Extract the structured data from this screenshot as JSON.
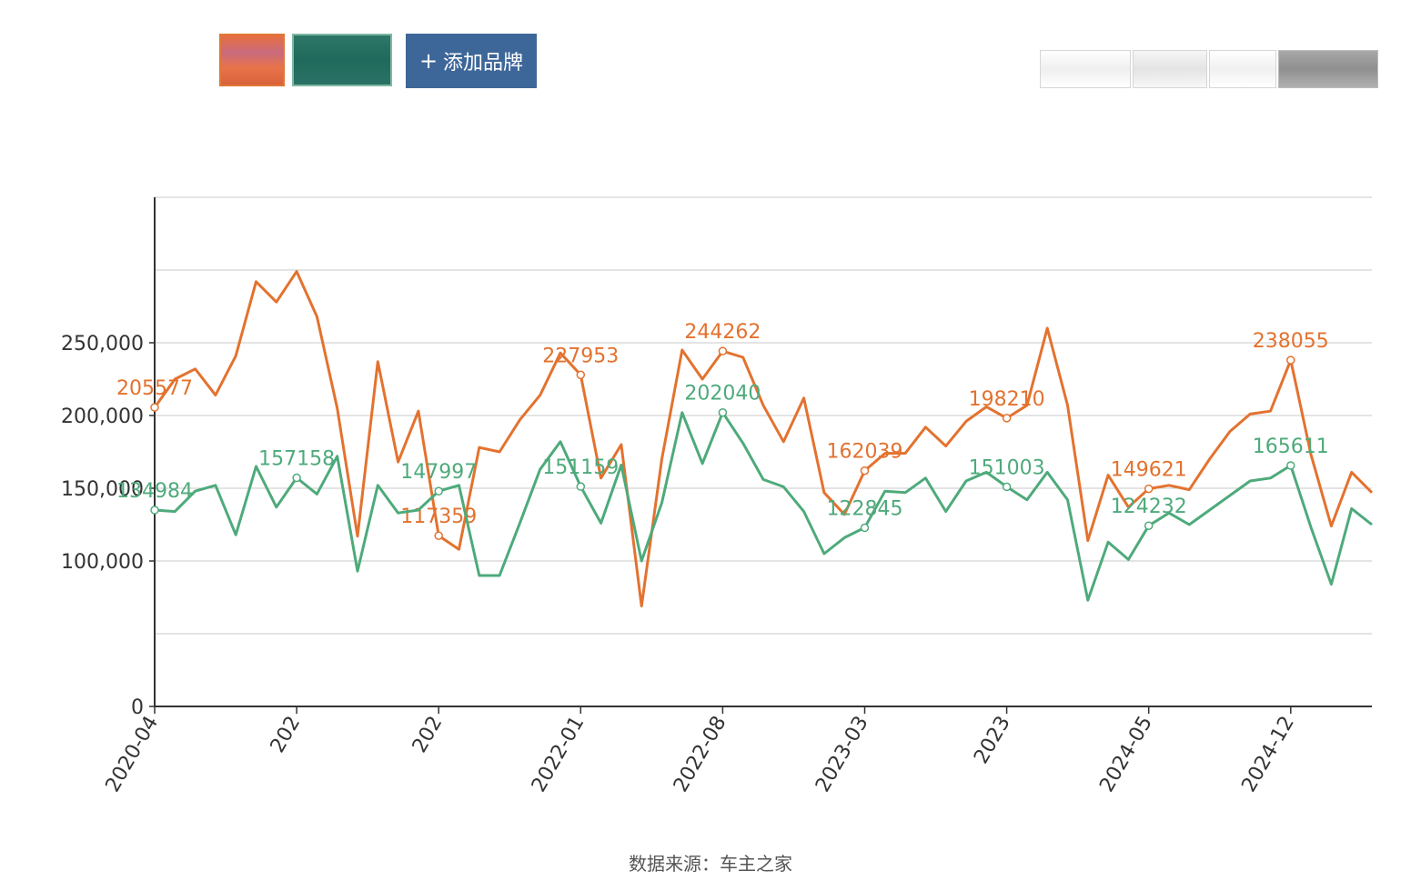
{
  "controls": {
    "brand_swatches": [
      {
        "color": "#e07536"
      },
      {
        "color": "#2e7769"
      }
    ],
    "add_brand_icon": "plus-icon",
    "add_brand_label": "添加品牌",
    "view_toggles": 4
  },
  "source_text": "数据来源：车主之家",
  "chart_data": {
    "type": "line",
    "ylim": [
      0,
      350000
    ],
    "y_ticks": [
      0,
      100000,
      150000,
      200000,
      250000
    ],
    "y_tick_labels": [
      "0",
      "100,000",
      "150,000",
      "200,000",
      "250,000"
    ],
    "x_tick_labels": [
      "2020-04",
      "202",
      "202",
      "2022-01",
      "2022-08",
      "2023-03",
      "2023",
      "2024-05",
      "2024-12"
    ],
    "x_tick_indices": [
      0,
      7,
      14,
      21,
      28,
      35,
      42,
      49,
      56
    ],
    "x_count": 61,
    "series": [
      {
        "color": "#e3722f",
        "values": [
          205577,
          225000,
          232000,
          214000,
          241000,
          292000,
          278000,
          299000,
          268000,
          205000,
          117000,
          237000,
          168000,
          203000,
          117359,
          108000,
          178000,
          175000,
          197000,
          214000,
          243000,
          227953,
          157000,
          180000,
          69000,
          170000,
          245000,
          225000,
          244262,
          240000,
          207000,
          182000,
          212000,
          147000,
          132000,
          162039,
          174000,
          174000,
          192000,
          179000,
          196000,
          206000,
          198210,
          207000,
          260000,
          207000,
          114000,
          159000,
          137000,
          149621,
          152000,
          149000,
          170000,
          189000,
          201000,
          203000,
          238055,
          173000,
          124000,
          161000,
          147000
        ],
        "labels": [
          {
            "index": 0,
            "text": "205577"
          },
          {
            "index": 14,
            "text": "117359"
          },
          {
            "index": 21,
            "text": "227953"
          },
          {
            "index": 28,
            "text": "244262"
          },
          {
            "index": 35,
            "text": "162039"
          },
          {
            "index": 42,
            "text": "198210"
          },
          {
            "index": 49,
            "text": "149621"
          },
          {
            "index": 56,
            "text": "238055"
          }
        ]
      },
      {
        "color": "#4eaa7b",
        "values": [
          134984,
          134000,
          148000,
          152000,
          118000,
          165000,
          137000,
          157158,
          146000,
          172000,
          93000,
          152000,
          133000,
          135000,
          147997,
          152000,
          90000,
          90000,
          126000,
          163000,
          182000,
          151159,
          126000,
          166000,
          100000,
          140000,
          202000,
          167000,
          202040,
          181000,
          156000,
          151000,
          134000,
          105000,
          116000,
          122845,
          148000,
          147000,
          157000,
          134000,
          155000,
          161000,
          151003,
          142000,
          161000,
          142000,
          73000,
          113000,
          101000,
          124232,
          133000,
          125000,
          135000,
          145000,
          155000,
          157000,
          165611,
          123000,
          84000,
          136000,
          125000
        ],
        "labels": [
          {
            "index": 0,
            "text": "134984"
          },
          {
            "index": 7,
            "text": "157158"
          },
          {
            "index": 14,
            "text": "147997"
          },
          {
            "index": 21,
            "text": "151159"
          },
          {
            "index": 28,
            "text": "202040"
          },
          {
            "index": 35,
            "text": "122845"
          },
          {
            "index": 42,
            "text": "151003"
          },
          {
            "index": 49,
            "text": "124232"
          },
          {
            "index": 56,
            "text": "165611"
          }
        ]
      }
    ],
    "grid": true
  }
}
